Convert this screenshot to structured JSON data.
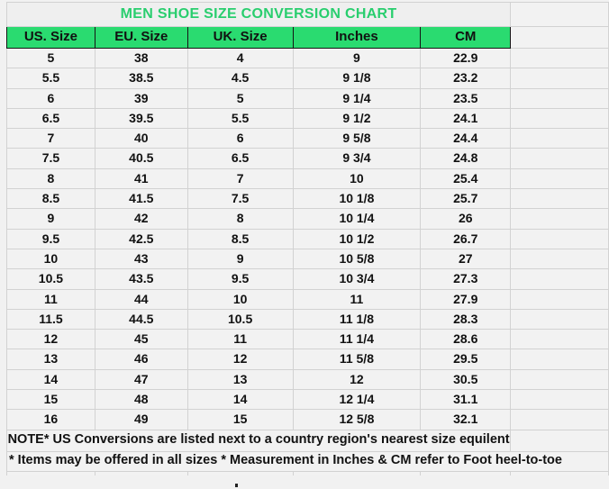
{
  "chart_data": {
    "type": "table",
    "title": "MEN SHOE SIZE CONVERSION CHART",
    "columns": [
      "US. Size",
      "EU. Size",
      "UK. Size",
      "Inches",
      "CM"
    ],
    "rows": [
      [
        "5",
        "38",
        "4",
        "9",
        "22.9"
      ],
      [
        "5.5",
        "38.5",
        "4.5",
        "9 1/8",
        "23.2"
      ],
      [
        "6",
        "39",
        "5",
        "9 1/4",
        "23.5"
      ],
      [
        "6.5",
        "39.5",
        "5.5",
        "9 1/2",
        "24.1"
      ],
      [
        "7",
        "40",
        "6",
        "9 5/8",
        "24.4"
      ],
      [
        "7.5",
        "40.5",
        "6.5",
        "9 3/4",
        "24.8"
      ],
      [
        "8",
        "41",
        "7",
        "10",
        "25.4"
      ],
      [
        "8.5",
        "41.5",
        "7.5",
        "10 1/8",
        "25.7"
      ],
      [
        "9",
        "42",
        "8",
        "10 1/4",
        "26"
      ],
      [
        "9.5",
        "42.5",
        "8.5",
        "10 1/2",
        "26.7"
      ],
      [
        "10",
        "43",
        "9",
        "10 5/8",
        "27"
      ],
      [
        "10.5",
        "43.5",
        "9.5",
        "10 3/4",
        "27.3"
      ],
      [
        "11",
        "44",
        "10",
        "11",
        "27.9"
      ],
      [
        "11.5",
        "44.5",
        "10.5",
        "11 1/8",
        "28.3"
      ],
      [
        "12",
        "45",
        "11",
        "11 1/4",
        "28.6"
      ],
      [
        "13",
        "46",
        "12",
        "11 5/8",
        "29.5"
      ],
      [
        "14",
        "47",
        "13",
        "12",
        "30.5"
      ],
      [
        "15",
        "48",
        "14",
        "12 1/4",
        "31.1"
      ],
      [
        "16",
        "49",
        "15",
        "12 5/8",
        "32.1"
      ]
    ],
    "notes": [
      "NOTE* US Conversions are listed next to a country region's nearest size equilent",
      "* Items may be offered in all sizes * Measurement in Inches & CM refer to Foot heel-to-toe"
    ],
    "layout_hints": {
      "grid": true,
      "empty_right_column": true
    }
  },
  "colors": {
    "header_green": "#2adb70",
    "title_green": "#29ce6e",
    "gridline_gray": "#d2d2d2"
  }
}
